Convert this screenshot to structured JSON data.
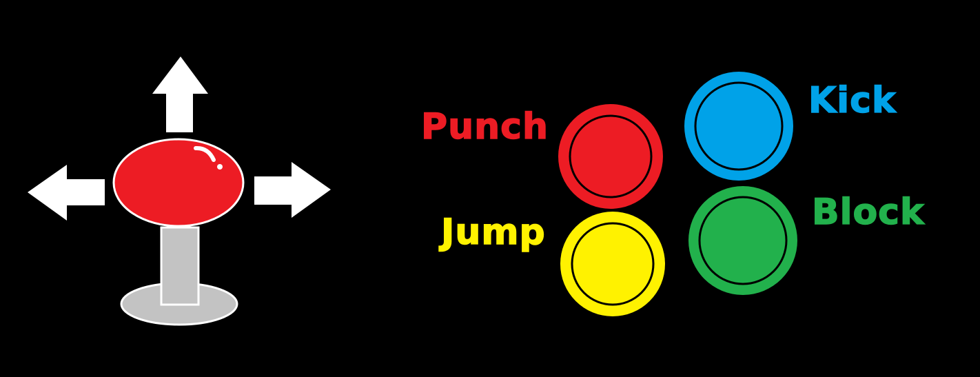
{
  "controls": {
    "joystick": {
      "directions": [
        "up-arrow-icon",
        "left-arrow-icon",
        "right-arrow-icon"
      ],
      "ball_color": "#ed1c24",
      "shaft_color": "#c3c3c3",
      "base_color": "#c3c3c3"
    },
    "buttons": [
      {
        "id": "punch",
        "label": "Punch",
        "color": "#ed1c24"
      },
      {
        "id": "kick",
        "label": "Kick",
        "color": "#00a2e8"
      },
      {
        "id": "jump",
        "label": "Jump",
        "color": "#fff200"
      },
      {
        "id": "block",
        "label": "Block",
        "color": "#22b14c"
      }
    ]
  }
}
